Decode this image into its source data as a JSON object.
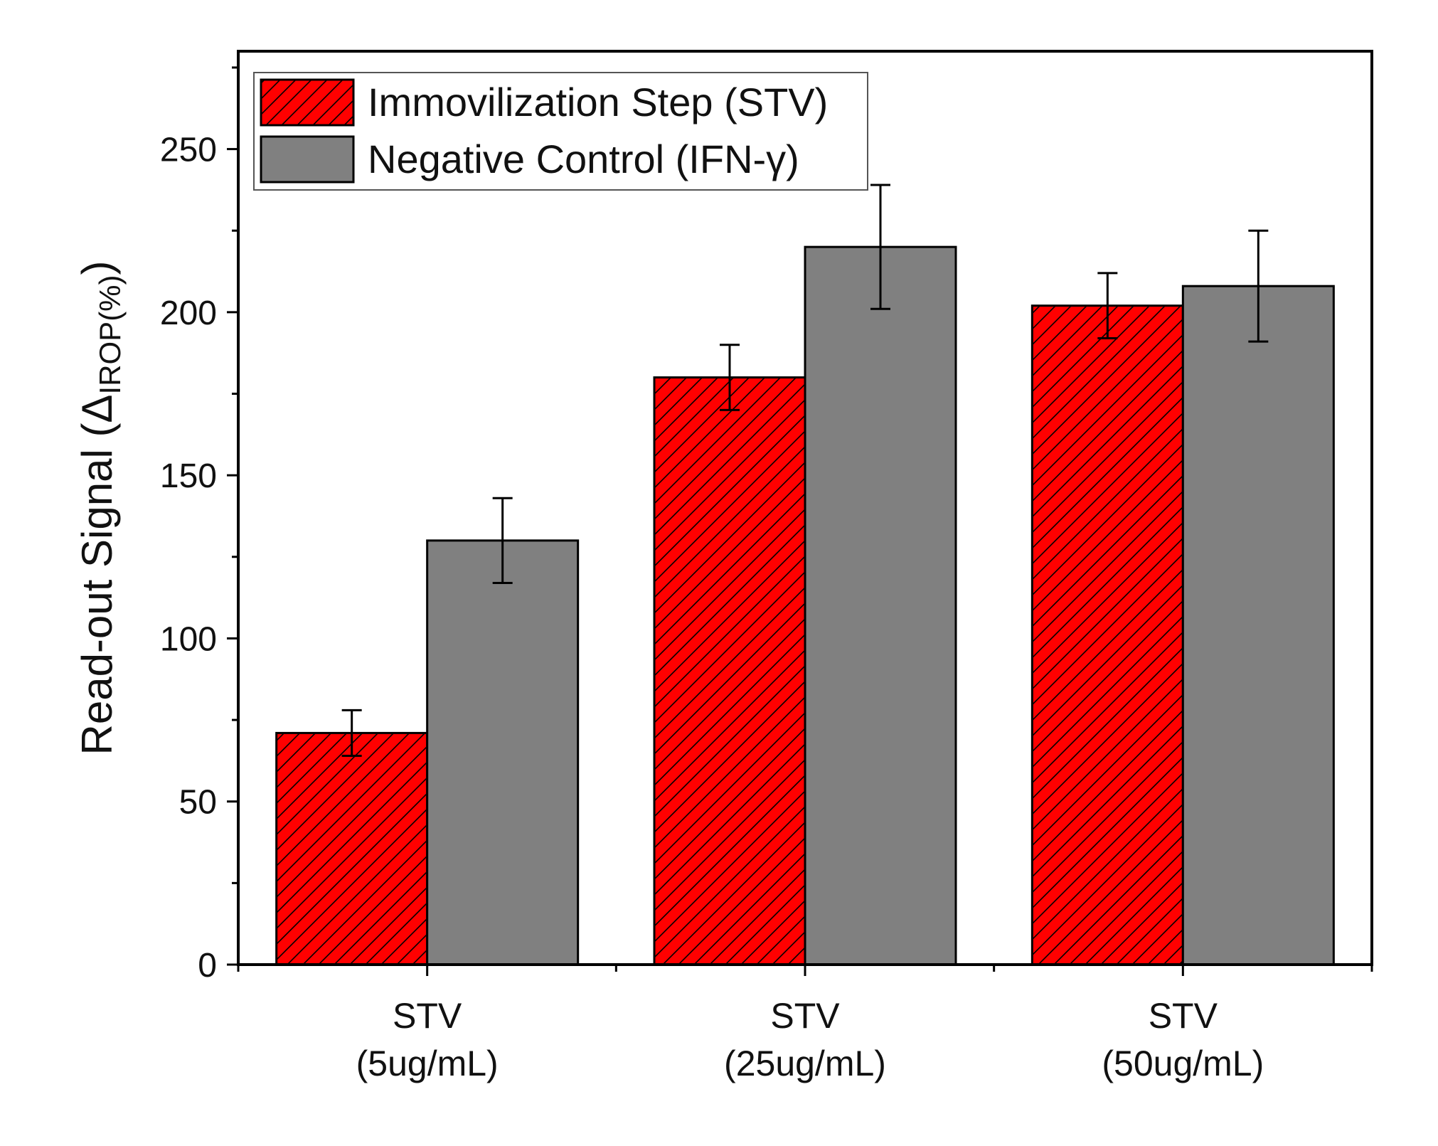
{
  "chart_data": {
    "type": "bar",
    "title": "",
    "xlabel": "",
    "ylabel": {
      "main": "Read-out Signal (",
      "symbol": "Δ",
      "subscript": "IROP(%)",
      "close": ")"
    },
    "ylim": [
      0,
      280
    ],
    "yticks": [
      0,
      50,
      100,
      150,
      200,
      250
    ],
    "categories": [
      {
        "line1": "STV",
        "line2": "(5ug/mL)"
      },
      {
        "line1": "STV",
        "line2": "(25ug/mL)"
      },
      {
        "line1": "STV",
        "line2": "(50ug/mL)"
      }
    ],
    "series": [
      {
        "name": "Immovilization Step (STV)",
        "color": "#ff0000",
        "pattern": "diagonal-hatch",
        "values": [
          71,
          180,
          202
        ],
        "errors": [
          7,
          10,
          10
        ]
      },
      {
        "name": "Negative Control (IFN-γ)",
        "color": "#808080",
        "pattern": "solid",
        "values": [
          130,
          220,
          208
        ],
        "errors": [
          13,
          19,
          17
        ]
      }
    ],
    "legend_position": "top-left",
    "grid": false
  }
}
